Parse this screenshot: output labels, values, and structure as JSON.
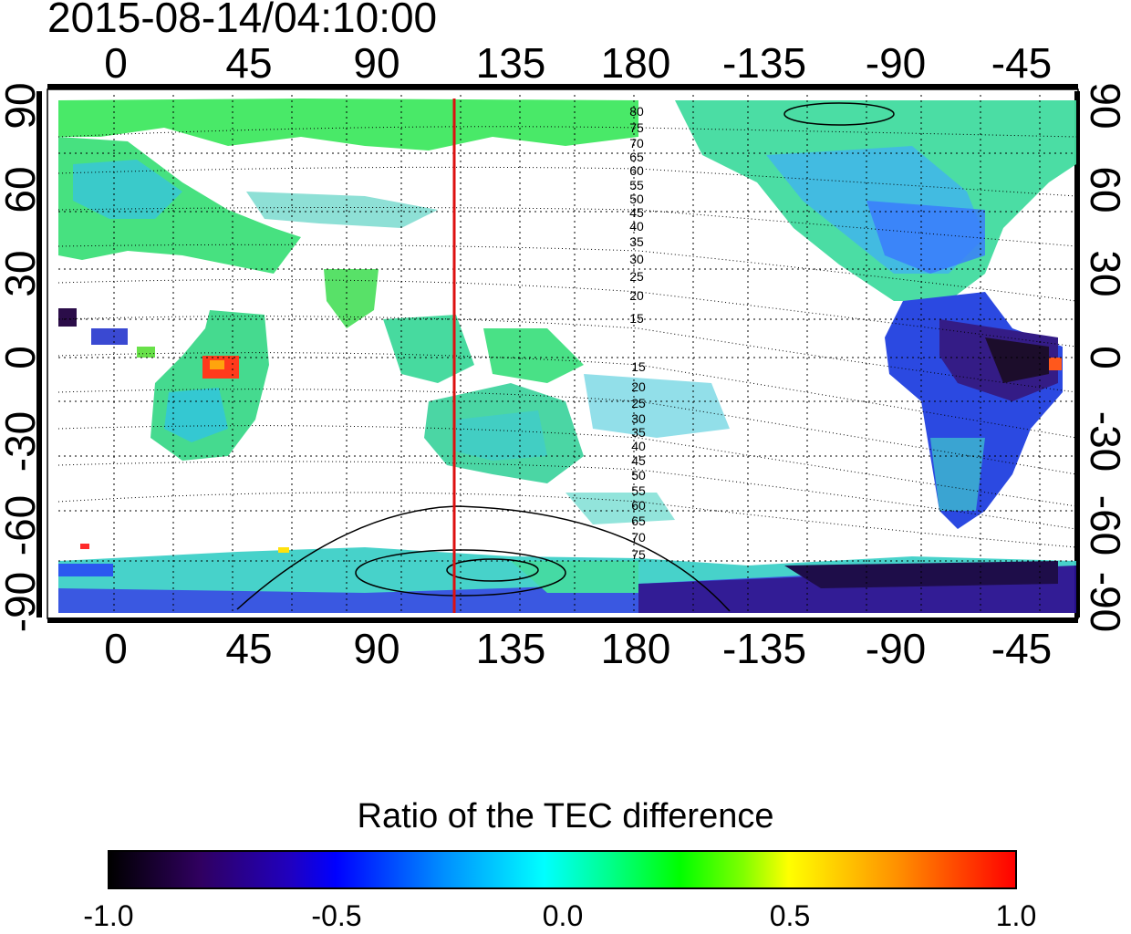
{
  "timestamp": "2015-08-14/04:10:00",
  "map": {
    "lon_ticks": [
      "0",
      "45",
      "90",
      "135",
      "180",
      "-135",
      "-90",
      "-45"
    ],
    "lat_ticks": [
      "90",
      "60",
      "30",
      "0",
      "-30",
      "-60",
      "-90"
    ],
    "marker_longitude": 120,
    "marker_color": "#dd1010",
    "contour_labels_north": [
      "80",
      "75",
      "70",
      "65",
      "60",
      "55",
      "50",
      "45",
      "40",
      "35",
      "30",
      "25",
      "20",
      "15"
    ],
    "contour_labels_south": [
      "15",
      "20",
      "25",
      "30",
      "35",
      "40",
      "45",
      "50",
      "55",
      "60",
      "65",
      "70",
      "75"
    ]
  },
  "colorbar": {
    "title": "Ratio of the TEC difference",
    "ticks": [
      "-1.0",
      "-0.5",
      "0.0",
      "0.5",
      "1.0"
    ],
    "min": -1.0,
    "max": 1.0
  }
}
